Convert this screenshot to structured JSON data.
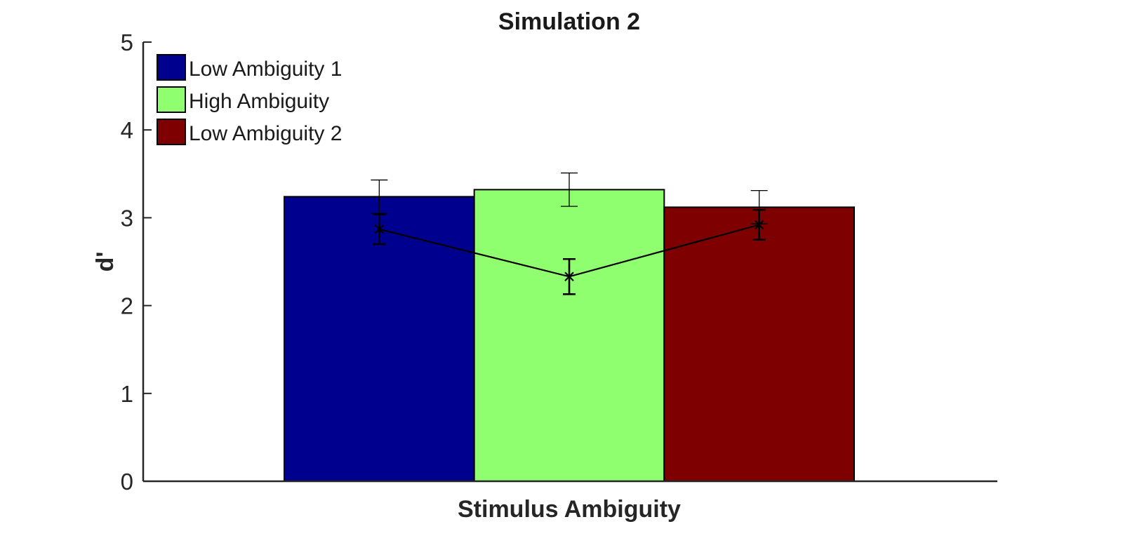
{
  "chart_data": {
    "type": "bar",
    "title": "Simulation 2",
    "xlabel": "Stimulus Ambiguity",
    "ylabel": "d'",
    "ylim": [
      0,
      5
    ],
    "yticks": [
      "0",
      "1",
      "2",
      "3",
      "4",
      "5"
    ],
    "grid": false,
    "legend_position": "top-left",
    "series": [
      {
        "name": "Low Ambiguity 1",
        "value": 3.24,
        "error": 0.19,
        "color": "#00008f"
      },
      {
        "name": "High Ambiguity",
        "value": 3.32,
        "error": 0.19,
        "color": "#8fff6f"
      },
      {
        "name": "Low Ambiguity 2",
        "value": 3.12,
        "error": 0.19,
        "color": "#7f0000"
      }
    ],
    "overlay_line": {
      "marker": "x",
      "color": "#000000",
      "values": [
        2.87,
        2.33,
        2.92
      ],
      "errors": [
        0.17,
        0.2,
        0.17
      ]
    }
  }
}
